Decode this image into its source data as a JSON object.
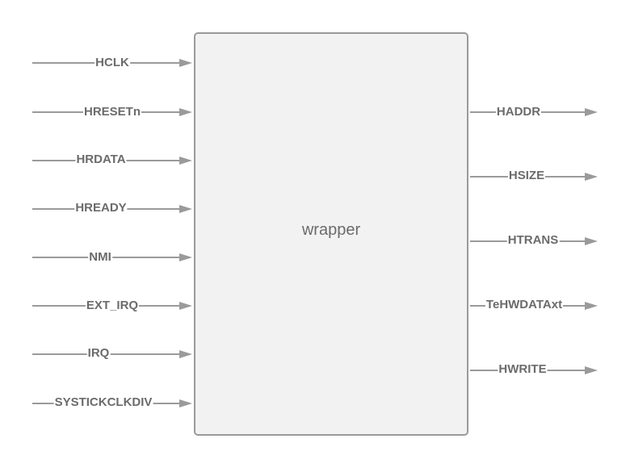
{
  "block": {
    "title": "wrapper"
  },
  "inputs": [
    {
      "name": "HCLK"
    },
    {
      "name": "HRESETn"
    },
    {
      "name": "HRDATA"
    },
    {
      "name": "HREADY"
    },
    {
      "name": "NMI"
    },
    {
      "name": "EXT_IRQ"
    },
    {
      "name": "IRQ"
    },
    {
      "name": "SYSTICKCLKDIV"
    }
  ],
  "outputs": [
    {
      "name": "HADDR"
    },
    {
      "name": "HSIZE"
    },
    {
      "name": "HTRANS"
    },
    {
      "name": "TeHWDATAxt"
    },
    {
      "name": "HWRITE"
    }
  ],
  "colors": {
    "line": "#9a9a9a",
    "text": "#6b6b6b",
    "block_fill": "#f2f2f2"
  }
}
